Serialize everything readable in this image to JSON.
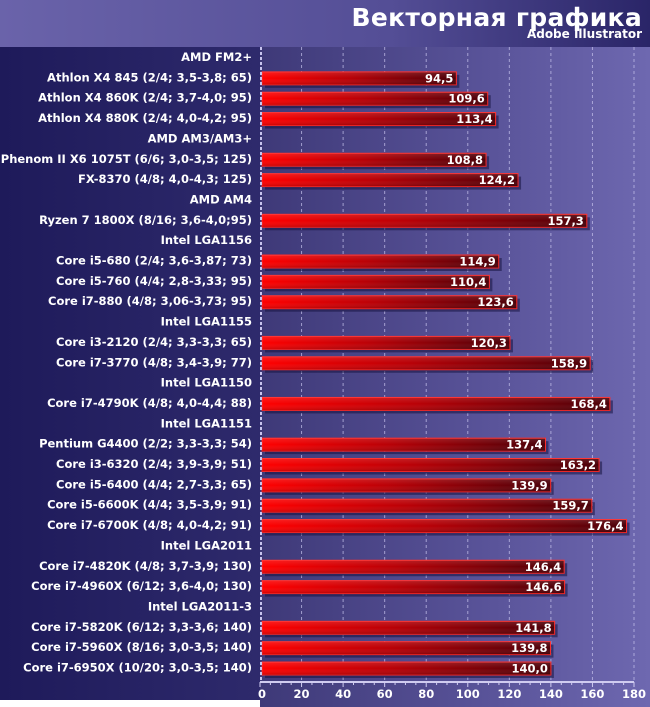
{
  "chart_data": {
    "type": "bar",
    "orientation": "horizontal",
    "title": "Векторная графика",
    "subtitle": "Adobe Illustrator",
    "xlabel": "",
    "ylabel": "",
    "xlim": [
      0,
      180
    ],
    "x_ticks": [
      0,
      20,
      40,
      60,
      80,
      100,
      120,
      140,
      160,
      180
    ],
    "grid": true,
    "legend": "none",
    "colors": {
      "bar_start": "#ff0000",
      "bar_end": "#4a0008",
      "bar_border": "#ff2020",
      "label": "#ffffff"
    },
    "rows": [
      {
        "type": "group",
        "label": "AMD FM2+"
      },
      {
        "type": "bar",
        "label": "Athlon X4 845 (2/4; 3,5-3,8; 65)",
        "value": 94.5,
        "value_label": "94,5"
      },
      {
        "type": "bar",
        "label": "Athlon X4 860K (2/4; 3,7-4,0; 95)",
        "value": 109.6,
        "value_label": "109,6"
      },
      {
        "type": "bar",
        "label": "Athlon X4 880K (2/4; 4,0-4,2; 95)",
        "value": 113.4,
        "value_label": "113,4"
      },
      {
        "type": "group",
        "label": "AMD AM3/AM3+"
      },
      {
        "type": "bar",
        "label": "Phenom II X6 1075T (6/6; 3,0-3,5; 125)",
        "value": 108.8,
        "value_label": "108,8"
      },
      {
        "type": "bar",
        "label": "FX-8370 (4/8; 4,0-4,3; 125)",
        "value": 124.2,
        "value_label": "124,2"
      },
      {
        "type": "group",
        "label": "AMD AM4"
      },
      {
        "type": "bar",
        "label": "Ryzen 7 1800X (8/16; 3,6-4,0;95)",
        "value": 157.3,
        "value_label": "157,3"
      },
      {
        "type": "group",
        "label": "Intel LGA1156"
      },
      {
        "type": "bar",
        "label": "Core i5-680 (2/4; 3,6-3,87; 73)",
        "value": 114.9,
        "value_label": "114,9"
      },
      {
        "type": "bar",
        "label": "Core i5-760 (4/4; 2,8-3,33; 95)",
        "value": 110.4,
        "value_label": "110,4"
      },
      {
        "type": "bar",
        "label": "Core i7-880 (4/8; 3,06-3,73; 95)",
        "value": 123.6,
        "value_label": "123,6"
      },
      {
        "type": "group",
        "label": "Intel LGA1155"
      },
      {
        "type": "bar",
        "label": "Core i3-2120 (2/4; 3,3-3,3; 65)",
        "value": 120.3,
        "value_label": "120,3"
      },
      {
        "type": "bar",
        "label": "Core i7-3770 (4/8; 3,4-3,9; 77)",
        "value": 158.9,
        "value_label": "158,9"
      },
      {
        "type": "group",
        "label": "Intel LGA1150"
      },
      {
        "type": "bar",
        "label": "Core i7-4790K (4/8; 4,0-4,4; 88)",
        "value": 168.4,
        "value_label": "168,4"
      },
      {
        "type": "group",
        "label": "Intel LGA1151"
      },
      {
        "type": "bar",
        "label": "Pentium G4400 (2/2; 3,3-3,3; 54)",
        "value": 137.4,
        "value_label": "137,4"
      },
      {
        "type": "bar",
        "label": "Core i3-6320 (2/4; 3,9-3,9; 51)",
        "value": 163.2,
        "value_label": "163,2"
      },
      {
        "type": "bar",
        "label": "Core i5-6400 (4/4; 2,7-3,3; 65)",
        "value": 139.9,
        "value_label": "139,9"
      },
      {
        "type": "bar",
        "label": "Core i5-6600K (4/4; 3,5-3,9; 91)",
        "value": 159.7,
        "value_label": "159,7"
      },
      {
        "type": "bar",
        "label": "Core i7-6700K (4/8; 4,0-4,2; 91)",
        "value": 176.4,
        "value_label": "176,4"
      },
      {
        "type": "group",
        "label": "Intel LGA2011"
      },
      {
        "type": "bar",
        "label": "Core i7-4820K (4/8; 3,7-3,9; 130)",
        "value": 146.4,
        "value_label": "146,4"
      },
      {
        "type": "bar",
        "label": "Core i7-4960X (6/12; 3,6-4,0; 130)",
        "value": 146.6,
        "value_label": "146,6"
      },
      {
        "type": "group",
        "label": "Intel LGA2011-3"
      },
      {
        "type": "bar",
        "label": "Core i7-5820K (6/12; 3,3-3,6; 140)",
        "value": 141.8,
        "value_label": "141,8"
      },
      {
        "type": "bar",
        "label": "Core i7-5960X (8/16; 3,0-3,5; 140)",
        "value": 139.8,
        "value_label": "139,8"
      },
      {
        "type": "bar",
        "label": "Core i7-6950X (10/20; 3,0-3,5; 140)",
        "value": 140.0,
        "value_label": "140,0"
      }
    ]
  }
}
